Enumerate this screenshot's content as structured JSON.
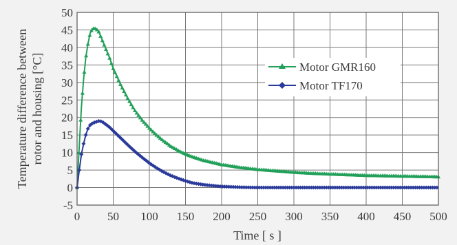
{
  "chart_data": {
    "type": "line",
    "title": "",
    "xlabel": "Time [ s ]",
    "ylabel_lines": [
      "Temperature difference between",
      "rotor and housing [°C]"
    ],
    "xlim": [
      0,
      500
    ],
    "ylim": [
      -5,
      50
    ],
    "xticks": [
      0,
      50,
      100,
      150,
      200,
      250,
      300,
      350,
      400,
      450,
      500
    ],
    "yticks": [
      -5,
      0,
      5,
      10,
      15,
      20,
      25,
      30,
      35,
      40,
      45,
      50
    ],
    "grid": true,
    "legend_position": "right",
    "series": [
      {
        "name": "Motor GMR160",
        "color": "#22a05a",
        "marker": "triangle",
        "x": [
          0,
          3,
          6,
          9,
          12,
          15,
          18,
          21,
          24,
          27,
          30,
          35,
          40,
          45,
          50,
          60,
          70,
          80,
          90,
          100,
          110,
          120,
          130,
          140,
          150,
          160,
          175,
          200,
          225,
          250,
          275,
          300,
          325,
          350,
          375,
          400,
          425,
          450,
          475,
          500
        ],
        "y": [
          0,
          12,
          23,
          31,
          37,
          41,
          44,
          45.3,
          45.5,
          45.2,
          44.5,
          42,
          39.5,
          37,
          34,
          29.5,
          25.5,
          22,
          19.3,
          17,
          15,
          13.3,
          11.8,
          10.6,
          9.6,
          8.8,
          7.8,
          6.6,
          5.8,
          5.2,
          4.8,
          4.4,
          4.1,
          3.9,
          3.7,
          3.5,
          3.4,
          3.3,
          3.2,
          3.1
        ]
      },
      {
        "name": "Motor TF170",
        "color": "#2a3a9a",
        "marker": "diamond",
        "x": [
          0,
          3,
          6,
          9,
          12,
          15,
          18,
          21,
          24,
          27,
          30,
          33,
          36,
          40,
          45,
          50,
          60,
          70,
          80,
          90,
          100,
          110,
          120,
          130,
          140,
          150,
          160,
          175,
          200,
          225,
          250,
          275,
          300,
          350,
          400,
          450,
          500
        ],
        "y": [
          0,
          5,
          9.5,
          12.5,
          15,
          16.8,
          17.8,
          18.3,
          18.6,
          18.8,
          19,
          18.9,
          18.6,
          18,
          17.2,
          16.2,
          14.2,
          12.2,
          10.3,
          8.6,
          7,
          5.6,
          4.4,
          3.4,
          2.6,
          1.9,
          1.3,
          0.8,
          0.3,
          0.1,
          0,
          0,
          0,
          0,
          0,
          0,
          0
        ]
      }
    ]
  }
}
